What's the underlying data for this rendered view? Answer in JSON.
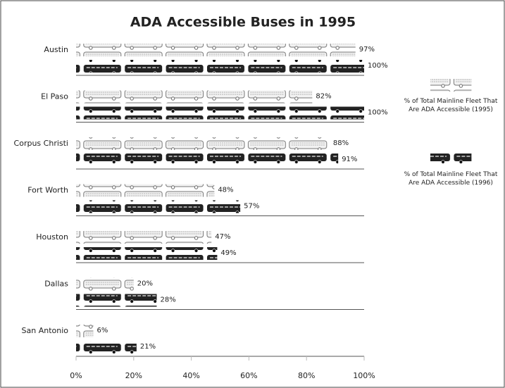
{
  "chart_data": {
    "type": "pictograph",
    "orientation": "horizontal",
    "title": "ADA Accessible Buses in 1995",
    "categories": [
      "Austin",
      "El Paso",
      "Corpus Christi",
      "Fort Worth",
      "Houston",
      "Dallas",
      "San Antonio"
    ],
    "series": [
      {
        "name": "% of Total Mainline Fleet That Are ADA Accessible (1995)",
        "color": "#f2f2f2",
        "values": [
          97,
          82,
          88,
          48,
          47,
          20,
          6
        ],
        "value_labels": [
          "97%",
          "82%",
          "88%",
          "48%",
          "47%",
          "20%",
          "6%"
        ]
      },
      {
        "name": "% of Total Mainline Fleet That Are ADA Accessible (1996)",
        "color": "#222222",
        "values": [
          100,
          100,
          91,
          57,
          49,
          28,
          21
        ],
        "value_labels": [
          "100%",
          "100%",
          "91%",
          "57%",
          "49%",
          "28%",
          "21%"
        ]
      }
    ],
    "xlim": [
      0,
      100
    ],
    "xticks": [
      {
        "value": 0,
        "label": "0%"
      },
      {
        "value": 20,
        "label": "20%"
      },
      {
        "value": 40,
        "label": "40%"
      },
      {
        "value": 60,
        "label": "60%"
      },
      {
        "value": 80,
        "label": "80%"
      },
      {
        "value": 100,
        "label": "100%"
      }
    ]
  }
}
